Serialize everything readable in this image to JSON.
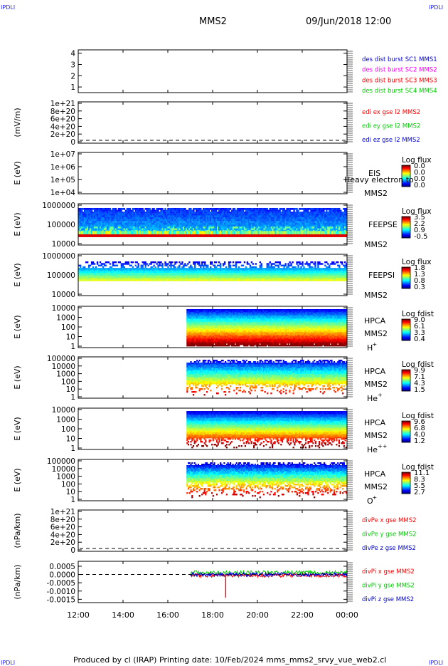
{
  "header": {
    "corner_label": "IPDLI",
    "spacecraft": "MMS2",
    "datetime": "09/Jun/2018 12:00"
  },
  "footer": {
    "text": "Produced by cl (IRAP)   Printing date: 10/Feb/2024   mms_mms2_srvy_vue_web2.cl"
  },
  "colors": {
    "frame": "#000000",
    "red": "#ff0000",
    "green": "#00cc00",
    "blue": "#0000ff",
    "magenta": "#ff00ff",
    "darkblue": "#0000cc"
  },
  "chart_data": [
    {
      "type": "line",
      "panel": "des-dist",
      "yticks": [
        "4",
        "3",
        "2",
        "1"
      ],
      "ylim": [
        0.5,
        4.3
      ],
      "legend": [
        {
          "text": "des dist burst SC1 MMS1",
          "color": "#0000cc"
        },
        {
          "text": "des dist burst SC2 MMS2",
          "color": "#ff00ff"
        },
        {
          "text": "des dist burst SC3 MMS3",
          "color": "#ff0000"
        },
        {
          "text": "des dist burst SC4 MMS4",
          "color": "#00cc00"
        }
      ]
    },
    {
      "type": "line",
      "panel": "edi",
      "ylabel": "(mV/m)",
      "yticks": [
        "1e+21",
        "8e+20",
        "6e+20",
        "4e+20",
        "2e+20",
        "0"
      ],
      "yvalues": [
        1e+21,
        8e+20,
        6e+20,
        4e+20,
        2e+20,
        0
      ],
      "legend": [
        {
          "text": "edi ex gse l2 MMS2",
          "color": "#ff0000"
        },
        {
          "text": "edi ey gse l2 MMS2",
          "color": "#00cc00"
        },
        {
          "text": "edi ez gse l2 MMS2",
          "color": "#0000cc"
        }
      ]
    },
    {
      "type": "heatmap",
      "panel": "eis",
      "ylabel": "E (eV)",
      "yticks": [
        "1e+07",
        "1e+06",
        "1e+05",
        "1e+04"
      ],
      "instrument": [
        "EIS",
        "MMS2"
      ],
      "overlay": "Heavy electron to",
      "colorbar": {
        "title": "Log flux",
        "ticks": [
          "0.0",
          "0.0",
          "0.0",
          "0.0"
        ]
      }
    },
    {
      "type": "heatmap",
      "panel": "feepse",
      "ylabel": "E (eV)",
      "yticks": [
        "1000000",
        "100000",
        "10000"
      ],
      "instrument": [
        "FEEPSE",
        "MMS2"
      ],
      "colorbar": {
        "title": "Log flux",
        "ticks": [
          "3.5",
          "2.2",
          "0.9",
          "-0.5"
        ]
      }
    },
    {
      "type": "heatmap",
      "panel": "feepsi",
      "ylabel": "E (eV)",
      "yticks": [
        "1000000",
        "100000",
        "10000"
      ],
      "instrument": [
        "FEEPSI",
        "MMS2"
      ],
      "colorbar": {
        "title": "Log flux",
        "ticks": [
          "1.8",
          "1.3",
          "0.8",
          "0.3"
        ]
      }
    },
    {
      "type": "heatmap",
      "panel": "hpca-h",
      "ylabel": "E (eV)",
      "yticks": [
        "10000",
        "1000",
        "100",
        "10",
        "1"
      ],
      "instrument": [
        "HPCA",
        "MMS2"
      ],
      "species": "H",
      "species_sup": "+",
      "colorbar": {
        "title": "Log fdist",
        "ticks": [
          "9.0",
          "6.1",
          "3.3",
          "0.4"
        ]
      }
    },
    {
      "type": "heatmap",
      "panel": "hpca-he",
      "ylabel": "E (eV)",
      "yticks": [
        "100000",
        "10000",
        "1000",
        "100",
        "10",
        "1"
      ],
      "instrument": [
        "HPCA",
        "MMS2"
      ],
      "species": "He",
      "species_sup": "+",
      "colorbar": {
        "title": "Log fdist",
        "ticks": [
          "9.9",
          "7.1",
          "4.3",
          "1.5"
        ]
      }
    },
    {
      "type": "heatmap",
      "panel": "hpca-hepp",
      "ylabel": "E (eV)",
      "yticks": [
        "10000",
        "1000",
        "100",
        "10",
        "1"
      ],
      "instrument": [
        "HPCA",
        "MMS2"
      ],
      "species": "He",
      "species_sup": "++",
      "colorbar": {
        "title": "Log fdist",
        "ticks": [
          "9.6",
          "6.8",
          "4.0",
          "1.2"
        ]
      }
    },
    {
      "type": "heatmap",
      "panel": "hpca-o",
      "ylabel": "E (eV)",
      "yticks": [
        "100000",
        "10000",
        "1000",
        "100",
        "10",
        "1"
      ],
      "instrument": [
        "HPCA",
        "MMS2"
      ],
      "species": "O",
      "species_sup": "+",
      "colorbar": {
        "title": "Log fdist",
        "ticks": [
          "11.1",
          "8.3",
          "5.5",
          "2.7"
        ]
      }
    },
    {
      "type": "line",
      "panel": "divpe",
      "ylabel": "(nPa/km)",
      "yticks": [
        "1e+21",
        "8e+20",
        "6e+20",
        "4e+20",
        "2e+20",
        "0"
      ],
      "legend": [
        {
          "text": "divPe x gse MMS2",
          "color": "#ff0000"
        },
        {
          "text": "divPe y gse MMS2",
          "color": "#00cc00"
        },
        {
          "text": "divPe z gse MMS2",
          "color": "#0000cc"
        }
      ]
    },
    {
      "type": "line",
      "panel": "divpi",
      "ylabel": "(nPa/km)",
      "yticks": [
        "0.0005",
        "0.0000",
        "-0.0005",
        "-0.0010",
        "-0.0015"
      ],
      "yvalues": [
        0.0005,
        0.0,
        -0.0005,
        -0.001,
        -0.0015
      ],
      "ylim": [
        -0.0017,
        0.0008
      ],
      "legend": [
        {
          "text": "divPi x gse MMS2",
          "color": "#ff0000"
        },
        {
          "text": "divPi y gse MMS2",
          "color": "#00cc00"
        },
        {
          "text": "divPi z gse MMS2",
          "color": "#0000cc"
        }
      ],
      "data_start": "17:00",
      "data_end": "00:00",
      "spike_time": "18:35",
      "spike_min": -0.0014
    }
  ],
  "x_axis": {
    "ticks": [
      "12:00",
      "14:00",
      "16:00",
      "18:00",
      "20:00",
      "22:00",
      "00:00"
    ],
    "hours": [
      0,
      2,
      4,
      6,
      8,
      10,
      12
    ]
  },
  "hpca_start": "16:50"
}
